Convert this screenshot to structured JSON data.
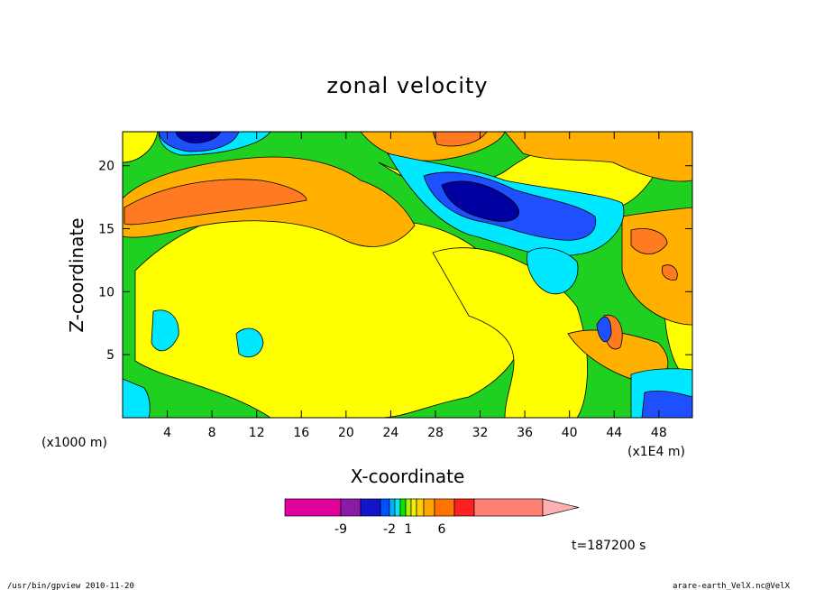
{
  "chart_data": {
    "type": "heatmap",
    "title": "zonal velocity",
    "xlabel": "X-coordinate",
    "ylabel": "Z-coordinate",
    "x_unit": "(x1000 m)",
    "x_far_unit": "(x1E4 m)",
    "xlim": [
      0,
      51
    ],
    "ylim": [
      0,
      22.7
    ],
    "xticks": [
      4,
      8,
      12,
      16,
      20,
      24,
      28,
      32,
      36,
      40,
      44,
      48
    ],
    "yticks": [
      5,
      10,
      15,
      20
    ],
    "colorbar_labels": [
      "-9",
      "-2",
      "1",
      "6"
    ],
    "colorbar_colors": [
      "#e0009a",
      "#8a1aa8",
      "#1414c8",
      "#0050ff",
      "#00b0ff",
      "#00e8e8",
      "#00e800",
      "#b0f000",
      "#f0f000",
      "#ffd000",
      "#ffa500",
      "#ff7400",
      "#ff2020",
      "#ff8070",
      "#ffb0b0"
    ],
    "field_colors": {
      "level_-3": "#0000a0",
      "level_-2": "#1e50ff",
      "level_-1": "#00e8ff",
      "level_0": "#20d020",
      "level_1": "#ffff00",
      "level_2": "#ffb000",
      "level_3": "#ff7a20"
    },
    "grid": false
  },
  "time_label": "t=187200 s",
  "footer_left": "/usr/bin/gpview   2010-11-20",
  "footer_right": "arare-earth_VelX.nc@VelX"
}
